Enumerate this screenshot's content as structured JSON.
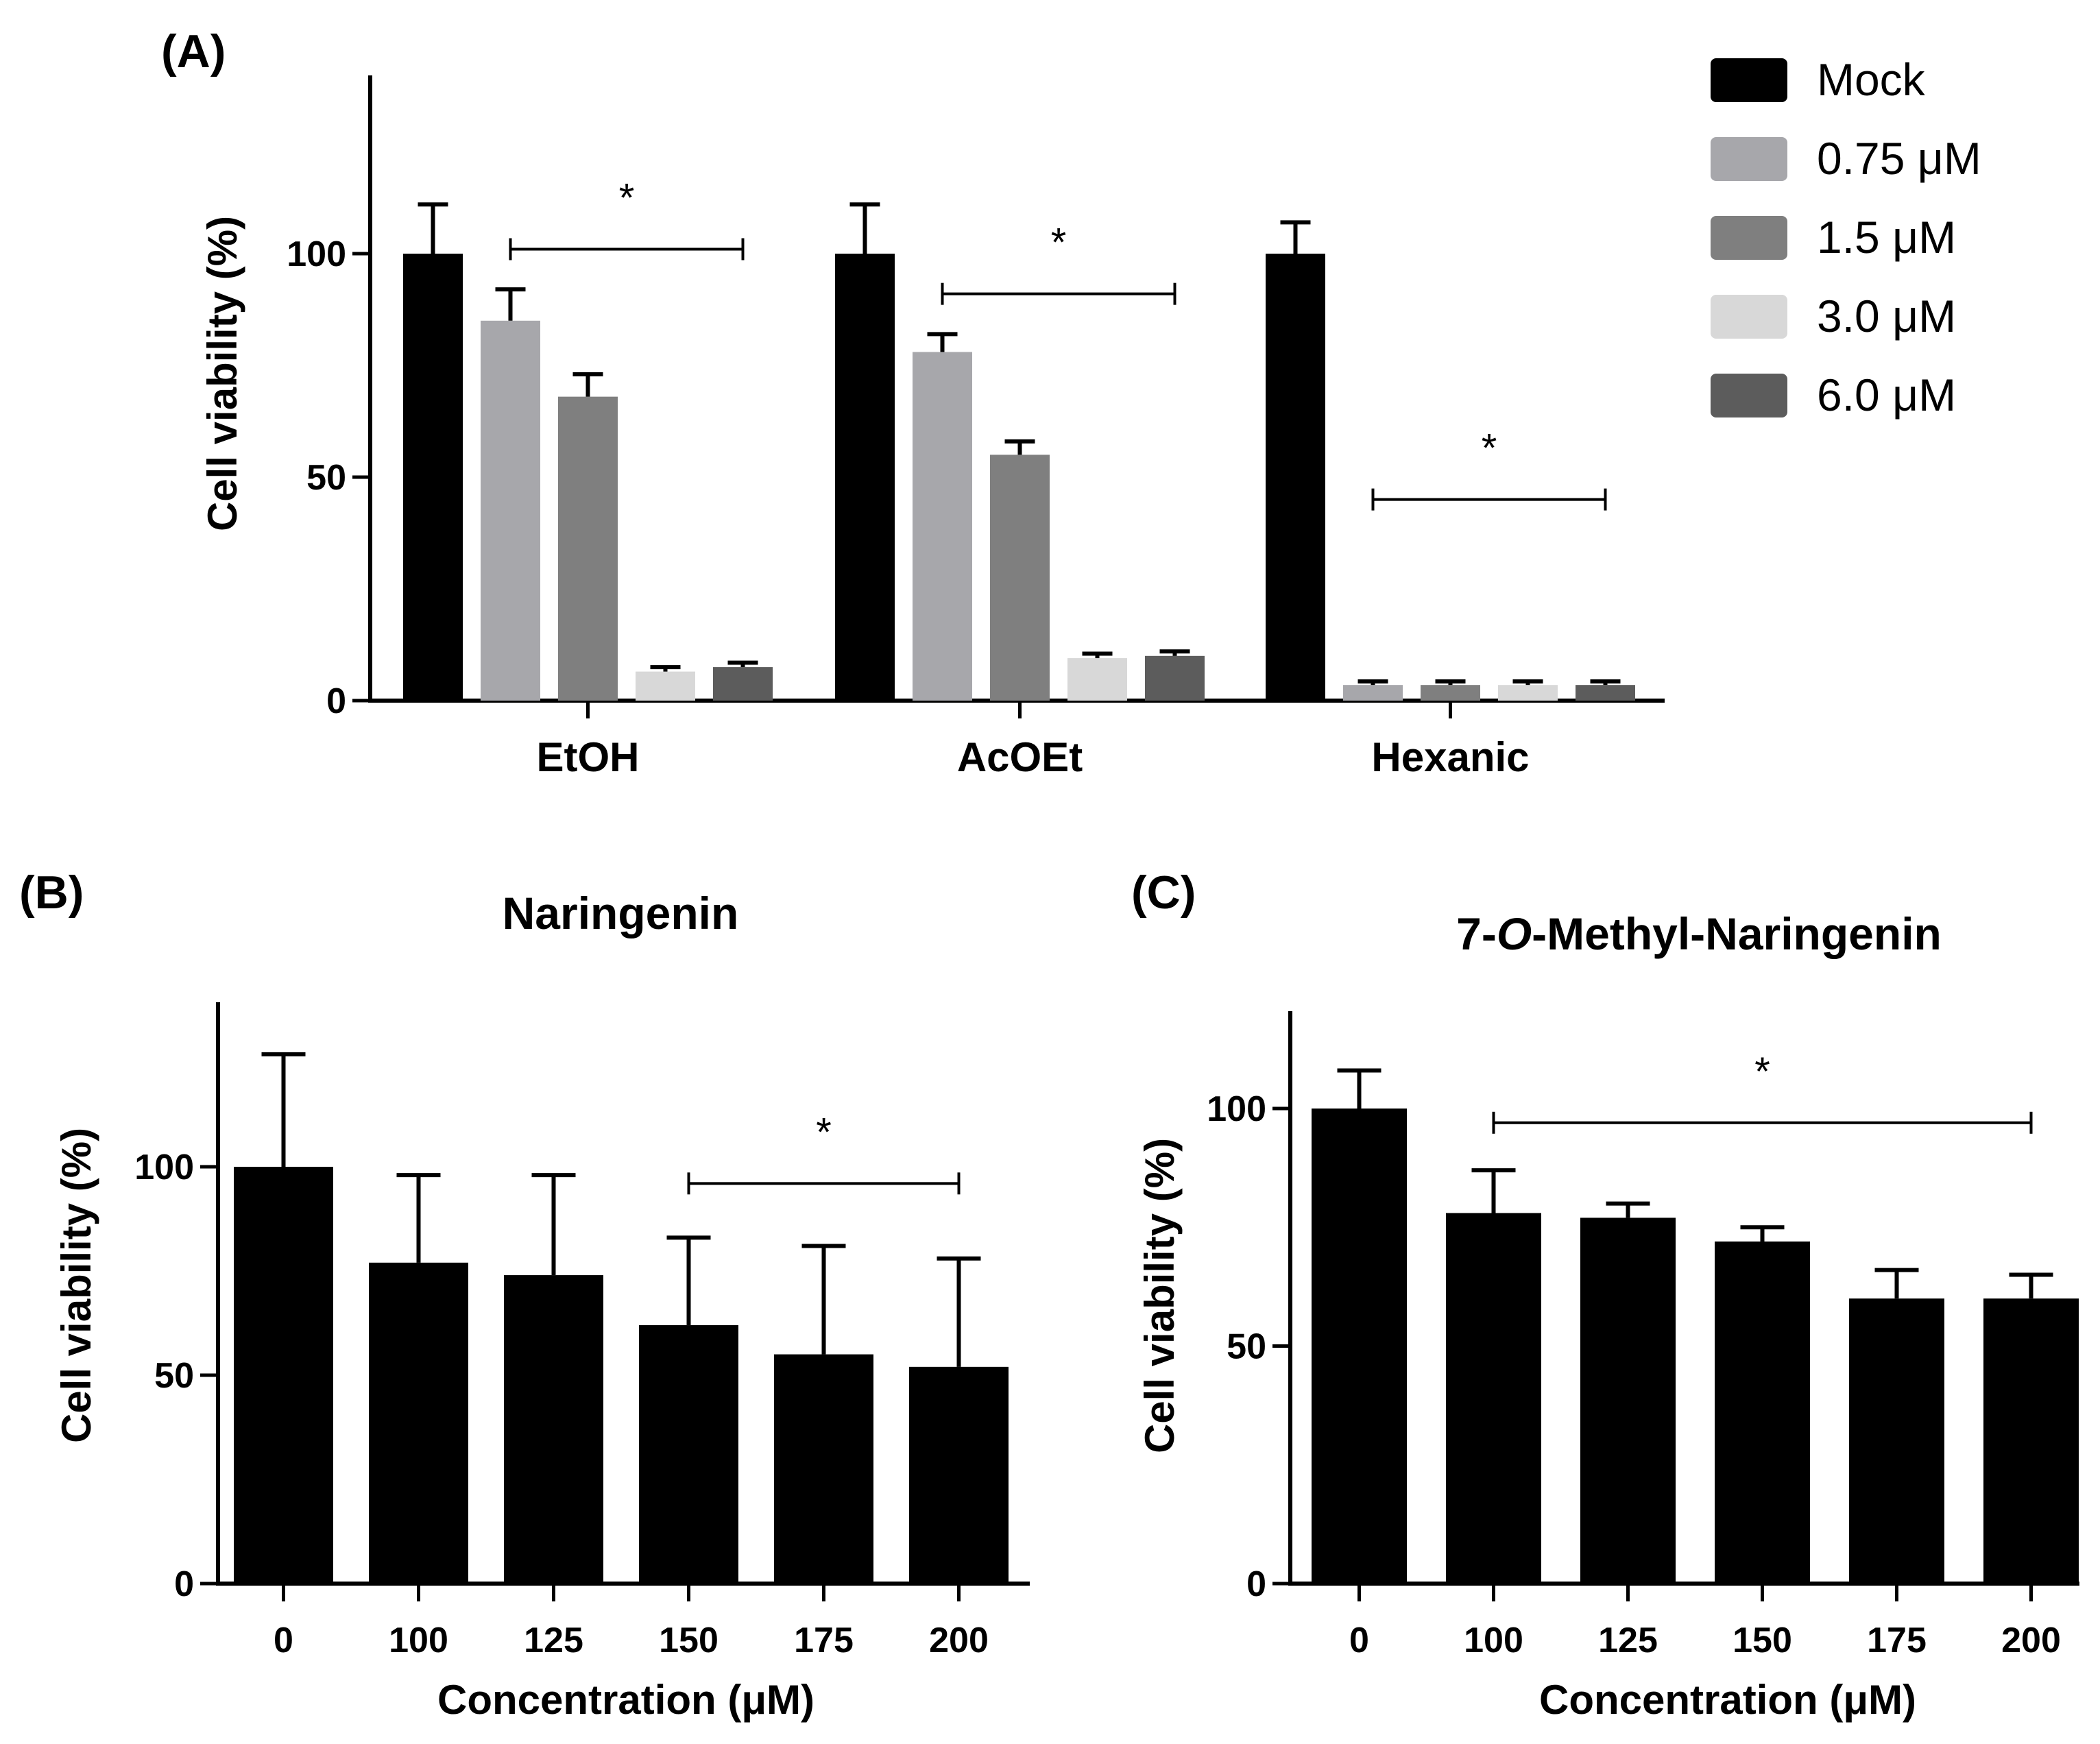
{
  "chart_data": [
    {
      "panel": "(A)",
      "type": "bar",
      "title": "",
      "xlabel": "",
      "ylabel": "Cell viability (%)",
      "ylim": [
        0,
        140
      ],
      "yticks": [
        0,
        50,
        100
      ],
      "categories": [
        "EtOH",
        "AcOEt",
        "Hexanic"
      ],
      "series": [
        {
          "name": "Mock",
          "color": "#000000",
          "values": [
            100,
            100,
            100
          ],
          "errors": [
            11,
            11,
            7
          ]
        },
        {
          "name": "0.75 μM",
          "color": "#a7a7ab",
          "values": [
            85,
            78,
            3.5
          ],
          "errors": [
            7,
            4,
            0.8
          ]
        },
        {
          "name": "1.5 μM",
          "color": "#7f7f7f",
          "values": [
            68,
            55,
            3.5
          ],
          "errors": [
            5,
            3,
            0.8
          ]
        },
        {
          "name": "3.0 μM",
          "color": "#d8d8d8",
          "values": [
            6.5,
            9.5,
            3.5
          ],
          "errors": [
            1,
            1,
            0.8
          ]
        },
        {
          "name": "6.0 μM",
          "color": "#5c5c5c",
          "values": [
            7.5,
            10,
            3.5
          ],
          "errors": [
            1,
            1,
            0.8
          ]
        }
      ],
      "significance": [
        {
          "group": "EtOH",
          "from_series": 1,
          "to_series": 4,
          "y": 101,
          "label": "*"
        },
        {
          "group": "AcOEt",
          "from_series": 1,
          "to_series": 4,
          "y": 91,
          "label": "*"
        },
        {
          "group": "Hexanic",
          "from_series": 1,
          "to_series": 4,
          "y": 45,
          "label": "*"
        }
      ]
    },
    {
      "panel": "(B)",
      "type": "bar",
      "title": "Naringenin",
      "xlabel": "Concentration (μM)",
      "ylabel": "Cell viability (%)",
      "ylim": [
        0,
        140
      ],
      "yticks": [
        0,
        50,
        100
      ],
      "categories": [
        "0",
        "100",
        "125",
        "150",
        "175",
        "200"
      ],
      "values": [
        100,
        77,
        74,
        62,
        55,
        52
      ],
      "errors": [
        27,
        21,
        24,
        21,
        26,
        26
      ],
      "color": "#000000",
      "significance": [
        {
          "from": "150",
          "to": "200",
          "y": 96,
          "label": "*"
        }
      ]
    },
    {
      "panel": "(C)",
      "type": "bar",
      "title": "7-O-Methyl-Naringenin",
      "xlabel": "Concentration (μM)",
      "ylabel": "Cell viability (%)",
      "ylim": [
        0,
        120
      ],
      "yticks": [
        0,
        50,
        100
      ],
      "categories": [
        "0",
        "100",
        "125",
        "150",
        "175",
        "200"
      ],
      "values": [
        100,
        78,
        77,
        72,
        60,
        60
      ],
      "errors": [
        8,
        9,
        3,
        3,
        6,
        5
      ],
      "color": "#000000",
      "significance": [
        {
          "from": "100",
          "to": "200",
          "y": 97,
          "label": "*"
        }
      ]
    }
  ]
}
